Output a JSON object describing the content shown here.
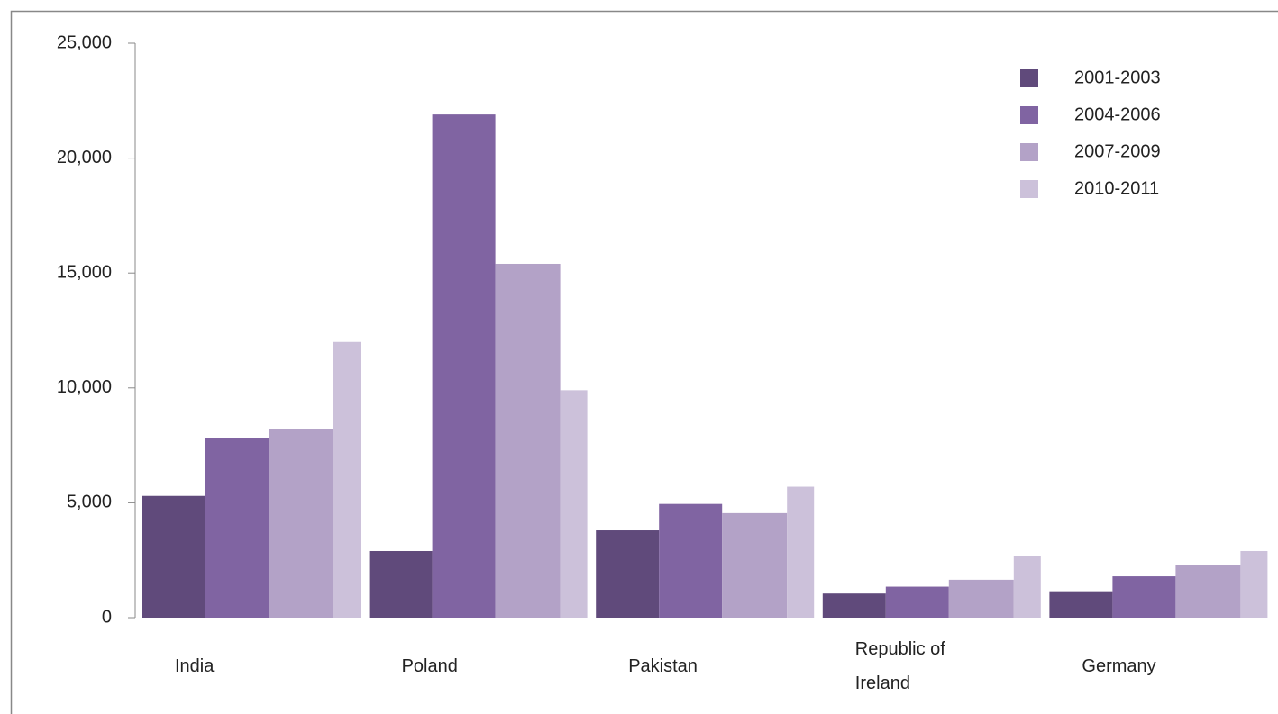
{
  "chart_data": {
    "type": "bar",
    "categories": [
      "India",
      "Poland",
      "Pakistan",
      "Republic of Ireland",
      "Germany"
    ],
    "series": [
      {
        "name": "2001-2003",
        "color": "#604a7b",
        "values": [
          5300,
          2900,
          3800,
          1050,
          1150
        ]
      },
      {
        "name": "2004-2006",
        "color": "#8064a2",
        "values": [
          7800,
          21900,
          4950,
          1350,
          1800
        ]
      },
      {
        "name": "2007-2009",
        "color": "#b3a2c7",
        "values": [
          8200,
          15400,
          4550,
          1650,
          2300
        ]
      },
      {
        "name": "2010-2011",
        "color": "#ccc1da",
        "values": [
          12000,
          9900,
          5700,
          2700,
          2900
        ]
      }
    ],
    "ylim": [
      0,
      25000
    ],
    "yticks": [
      0,
      {
        "value": 5000,
        "label": "5,000"
      },
      {
        "value": 10000,
        "label": "10,000"
      },
      {
        "value": 15000,
        "label": "15,000"
      },
      {
        "value": 20000,
        "label": "20,000"
      },
      {
        "value": 25000,
        "label": "25,000"
      }
    ],
    "legend": "upper right"
  }
}
